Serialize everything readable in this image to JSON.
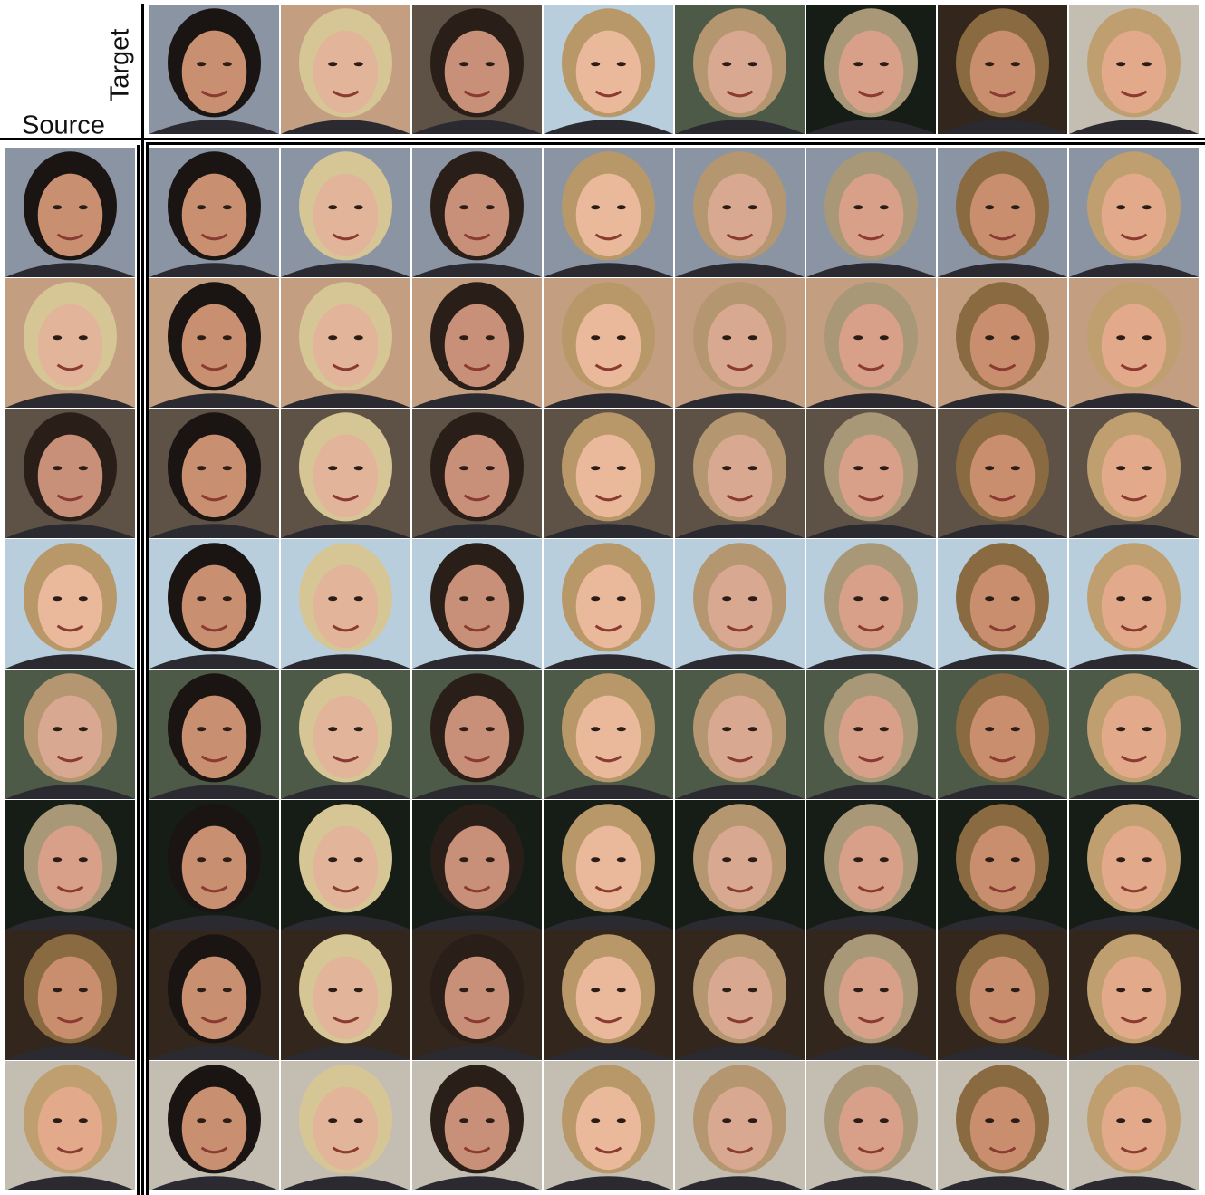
{
  "labels": {
    "target": "Target",
    "source": "Source"
  }
}
